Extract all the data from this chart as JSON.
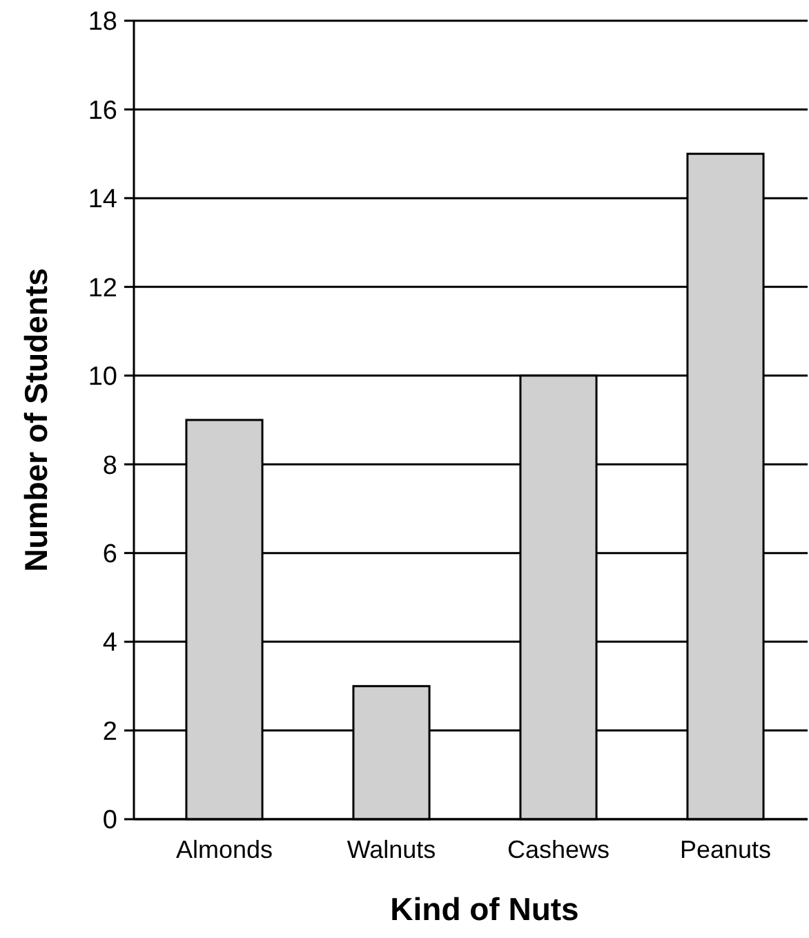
{
  "chart_data": {
    "type": "bar",
    "xlabel": "Kind of Nuts",
    "ylabel": "Number of Students",
    "categories": [
      "Almonds",
      "Walnuts",
      "Cashews",
      "Peanuts"
    ],
    "values": [
      9,
      3,
      10,
      15
    ],
    "color": "#d0d0d0",
    "ylim": [
      0,
      18
    ],
    "yticks": [
      0,
      2,
      4,
      6,
      8,
      10,
      12,
      14,
      16,
      18
    ],
    "grid": "y"
  }
}
